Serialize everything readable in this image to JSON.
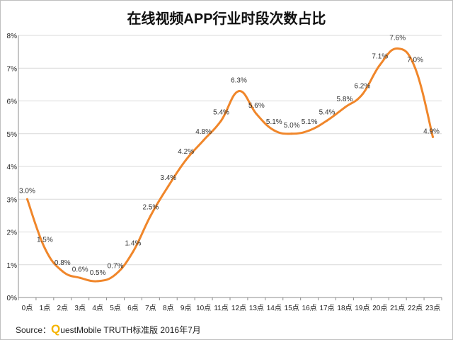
{
  "title": "在线视频APP行业时段次数占比",
  "source": {
    "prefix": "Source：",
    "logo_letter": "Q",
    "text": "uestMobile TRUTH标准版 2016年7月"
  },
  "colors": {
    "line": "#f0862a",
    "grid": "#d9d9d9",
    "axis": "#8c8c8c"
  },
  "chart_data": {
    "type": "line",
    "title": "在线视频APP行业时段次数占比",
    "xlabel": "",
    "ylabel": "",
    "categories": [
      "0点",
      "1点",
      "2点",
      "3点",
      "4点",
      "5点",
      "6点",
      "7点",
      "8点",
      "9点",
      "10点",
      "11点",
      "12点",
      "13点",
      "14点",
      "15点",
      "16点",
      "17点",
      "18点",
      "19点",
      "20点",
      "21点",
      "22点",
      "23点"
    ],
    "series": [
      {
        "values": [
          3.0,
          1.5,
          0.8,
          0.6,
          0.5,
          0.7,
          1.4,
          2.5,
          3.4,
          4.2,
          4.8,
          5.4,
          6.3,
          5.6,
          5.1,
          5.0,
          5.1,
          5.4,
          5.8,
          6.2,
          7.1,
          7.6,
          7.0,
          4.9
        ],
        "labels": [
          "3.0%",
          "1.5%",
          "0.8%",
          "0.6%",
          "0.5%",
          "0.7%",
          "1.4%",
          "2.5%",
          "3.4%",
          "4.2%",
          "4.8%",
          "5.4%",
          "6.3%",
          "5.6%",
          "5.1%",
          "5.0%",
          "5.1%",
          "5.4%",
          "5.8%",
          "6.2%",
          "7.1%",
          "7.6%",
          "7.0%",
          "4.9%"
        ]
      }
    ],
    "ylim": [
      0,
      8
    ],
    "yticks": [
      0,
      1,
      2,
      3,
      4,
      5,
      6,
      7,
      8
    ],
    "ytick_labels": [
      "0%",
      "1%",
      "2%",
      "3%",
      "4%",
      "5%",
      "6%",
      "7%",
      "8%"
    ],
    "grid": true,
    "legend": "none"
  }
}
